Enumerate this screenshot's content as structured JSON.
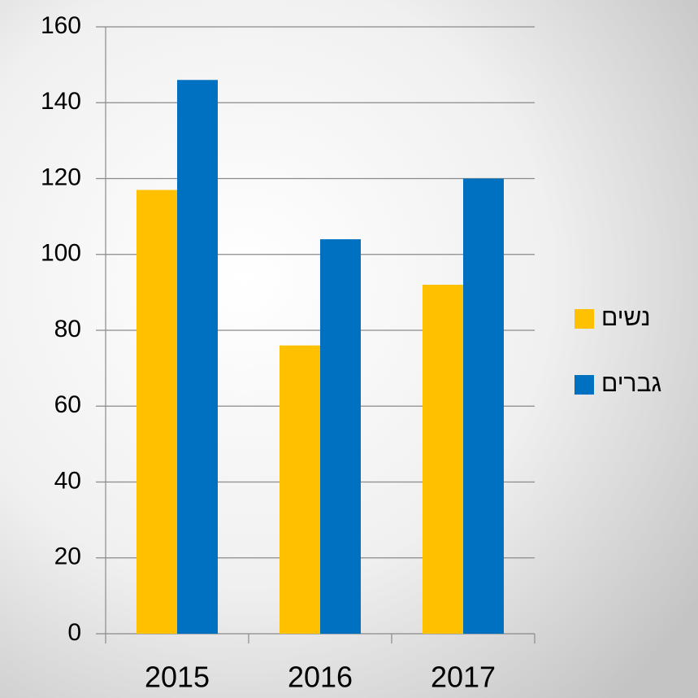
{
  "chart_data": {
    "type": "bar",
    "categories": [
      "2015",
      "2016",
      "2017"
    ],
    "series": [
      {
        "name": "נשים",
        "color": "#FFC000",
        "values": [
          117,
          76,
          92
        ]
      },
      {
        "name": "גברים",
        "color": "#0070C0",
        "values": [
          146,
          104,
          120
        ]
      }
    ],
    "ylim": [
      0,
      160
    ],
    "yticks": [
      0,
      20,
      40,
      60,
      80,
      100,
      120,
      140,
      160
    ],
    "grid": true,
    "legend": "right"
  }
}
